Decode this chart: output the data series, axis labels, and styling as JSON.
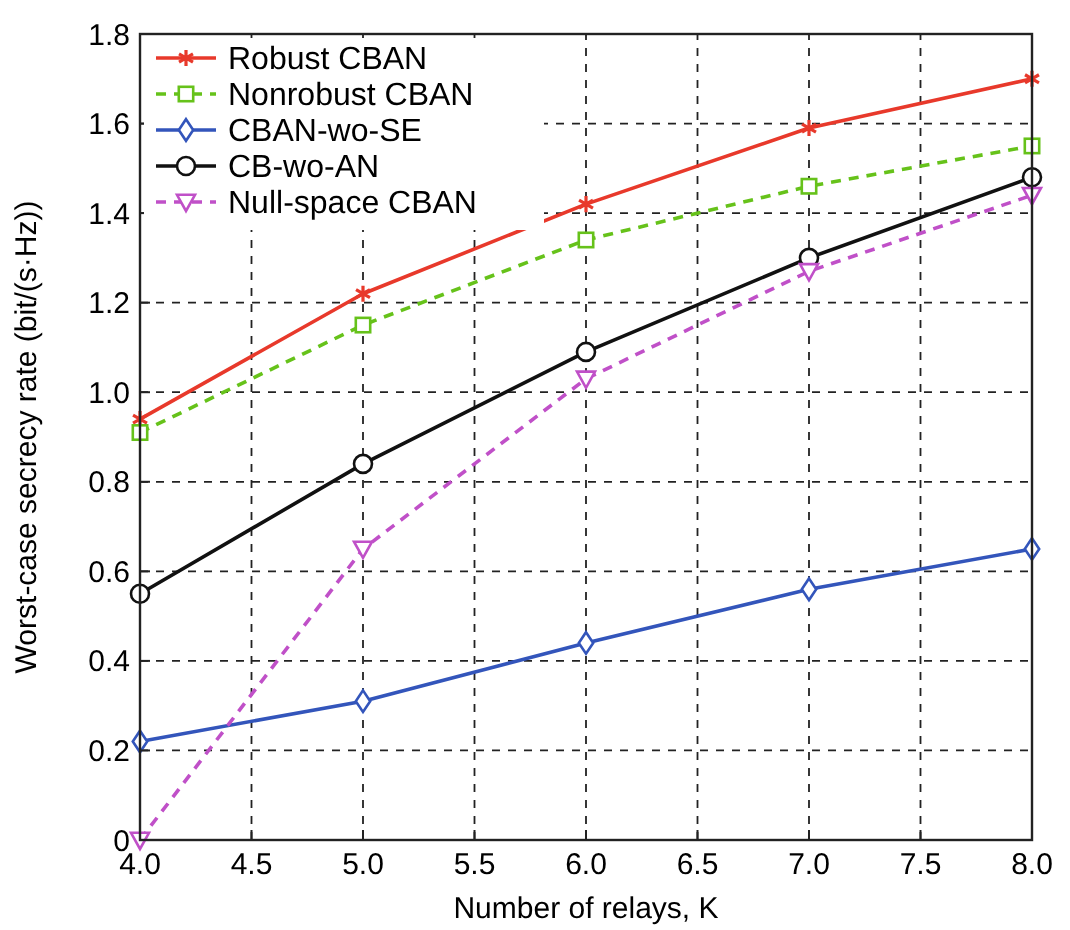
{
  "chart_data": {
    "type": "line",
    "xlabel": "Number of relays, K",
    "ylabel": "Worst-case secrecy rate (bit/(s·Hz))",
    "x": [
      4,
      5,
      6,
      7,
      8
    ],
    "xlim": [
      4,
      8
    ],
    "xticks": [
      {
        "value": 4,
        "label": "4.0"
      },
      {
        "value": 4.5,
        "label": "4.5"
      },
      {
        "value": 5,
        "label": "5.0"
      },
      {
        "value": 5.5,
        "label": "5.5"
      },
      {
        "value": 6,
        "label": "6.0"
      },
      {
        "value": 6.5,
        "label": "6.5"
      },
      {
        "value": 7,
        "label": "7.0"
      },
      {
        "value": 7.5,
        "label": "7.5"
      },
      {
        "value": 8,
        "label": "8.0"
      }
    ],
    "ylim": [
      0,
      1.8
    ],
    "yticks": [
      0,
      0.2,
      0.4,
      0.6,
      0.8,
      {
        "value": 1,
        "label": "1.0"
      },
      1.2,
      1.4,
      1.6,
      1.8
    ],
    "grid": true,
    "legend": "top left",
    "series": [
      {
        "name": "Robust CBAN",
        "color": "#e8392b",
        "values": [
          0.94,
          1.22,
          1.42,
          1.59,
          1.7
        ],
        "marker": "cross",
        "line_style": "solid"
      },
      {
        "name": "Nonrobust CBAN",
        "color": "#66c21a",
        "values": [
          0.91,
          1.15,
          1.34,
          1.46,
          1.55
        ],
        "marker": "square",
        "line_style": "dashed"
      },
      {
        "name": "CBAN-wo-SE",
        "color": "#3355bb",
        "values": [
          0.22,
          0.31,
          0.44,
          0.56,
          0.65
        ],
        "marker": "diamond",
        "line_style": "solid"
      },
      {
        "name": "CB-wo-AN",
        "color": "#111111",
        "values": [
          0.55,
          0.84,
          1.09,
          1.3,
          1.48
        ],
        "marker": "circle",
        "line_style": "solid"
      },
      {
        "name": "Null-space CBAN",
        "color": "#c050c8",
        "values": [
          0,
          0.65,
          1.03,
          1.27,
          1.44
        ],
        "marker": "triangle",
        "line_style": "dashed"
      }
    ]
  }
}
